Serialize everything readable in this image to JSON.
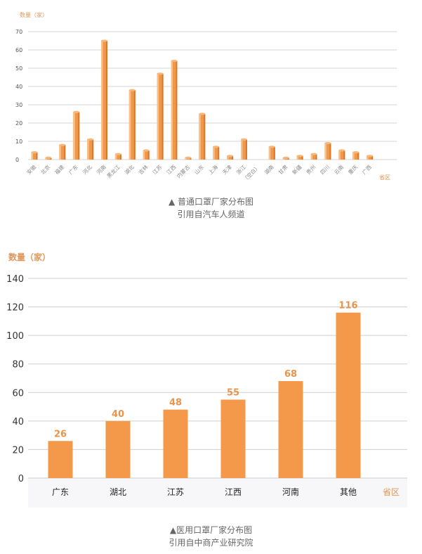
{
  "chart_data": [
    {
      "type": "bar",
      "ylabel": "数量（家）",
      "xlabel": "省区",
      "ylim": [
        0,
        70
      ],
      "yticks": [
        0,
        10,
        20,
        30,
        40,
        50,
        60,
        70
      ],
      "categories": [
        "安徽",
        "北京",
        "福建",
        "广东",
        "河北",
        "河南",
        "黑龙江",
        "湖北",
        "吉林",
        "江苏",
        "江西",
        "内蒙古",
        "山东",
        "上海",
        "天津",
        "浙江",
        "（空白）",
        "湖南",
        "甘肃",
        "新疆",
        "贵州",
        "四川",
        "云南",
        "重庆",
        "广西"
      ],
      "values": [
        4,
        1,
        8,
        26,
        11,
        65,
        3,
        38,
        5,
        47,
        54,
        1,
        25,
        7,
        2,
        11,
        0,
        7,
        1,
        2,
        3,
        9,
        5,
        4,
        2
      ],
      "grid": true,
      "color": "#f0984a"
    },
    {
      "type": "bar",
      "ylabel": "数量（家）",
      "xlabel": "省区",
      "ylim": [
        0,
        140
      ],
      "yticks": [
        0,
        20,
        40,
        60,
        80,
        100,
        120,
        140
      ],
      "categories": [
        "广东",
        "湖北",
        "江苏",
        "江西",
        "河南",
        "其他"
      ],
      "values": [
        26,
        40,
        48,
        55,
        68,
        116
      ],
      "data_labels": [
        "26",
        "40",
        "48",
        "55",
        "68",
        "116"
      ],
      "grid": true,
      "color": "#f4994a"
    }
  ],
  "captions": {
    "chart1_title": "▲ 普通口罩厂家分布图",
    "chart1_source": "引用自汽车人频道",
    "chart2_title": "▲医用口罩厂家分布图",
    "chart2_source": "引用自中商产业研究院"
  }
}
